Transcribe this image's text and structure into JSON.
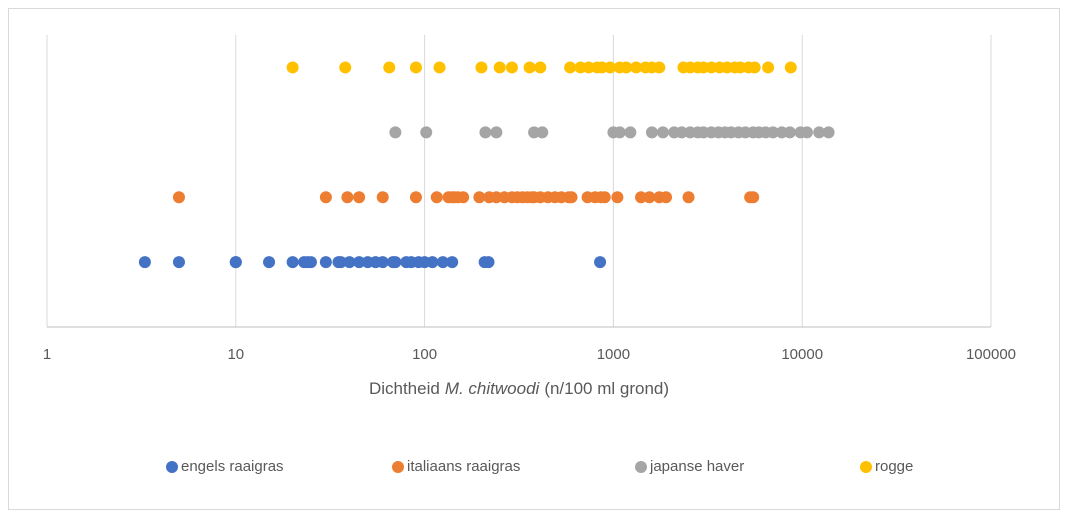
{
  "chart_data": {
    "type": "scatter",
    "xscale": "log",
    "grid": true,
    "legend": "bottom",
    "xlabel": [
      "Dichtheid",
      "M. chitwoodi",
      "(n/100 ml grond)"
    ],
    "xlim": [
      1,
      100000
    ],
    "xticks": [
      1,
      10,
      100,
      1000,
      10000,
      100000
    ],
    "ylim": [
      0,
      4.5
    ],
    "series": [
      {
        "name": "engels raaigras",
        "color": "#4472c4",
        "y": 1,
        "x": [
          3.3,
          5,
          10,
          10,
          15,
          20,
          23,
          24,
          25,
          30,
          35,
          36,
          40,
          45,
          50,
          55,
          60,
          68,
          70,
          80,
          85,
          93,
          100,
          110,
          125,
          140,
          208,
          218,
          850
        ]
      },
      {
        "name": "italiaans raaigras",
        "color": "#ed7d31",
        "y": 2,
        "x": [
          5,
          30,
          39,
          45,
          60,
          90,
          116,
          134,
          140,
          144,
          150,
          160,
          195,
          220,
          240,
          265,
          290,
          310,
          330,
          350,
          370,
          380,
          410,
          450,
          490,
          530,
          580,
          600,
          730,
          800,
          860,
          900,
          1050,
          1400,
          1550,
          1750,
          1900,
          2500,
          5300,
          5500
        ]
      },
      {
        "name": "japanse haver",
        "color": "#a5a5a5",
        "y": 3,
        "x": [
          70,
          102,
          210,
          240,
          380,
          420,
          1000,
          1080,
          1230,
          1600,
          1830,
          2100,
          2300,
          2550,
          2800,
          3000,
          3300,
          3600,
          3900,
          4200,
          4600,
          5000,
          5500,
          5900,
          6400,
          7000,
          7800,
          8600,
          9800,
          10600,
          12300,
          13800
        ]
      },
      {
        "name": "rogge",
        "color": "#ffc000",
        "y": 4,
        "x": [
          20,
          38,
          65,
          90,
          120,
          200,
          250,
          290,
          360,
          410,
          590,
          670,
          740,
          820,
          870,
          960,
          1080,
          1170,
          1320,
          1480,
          1600,
          1750,
          2350,
          2550,
          2800,
          3000,
          3300,
          3650,
          4000,
          4400,
          4700,
          5200,
          5600,
          6600,
          8700
        ]
      }
    ]
  }
}
